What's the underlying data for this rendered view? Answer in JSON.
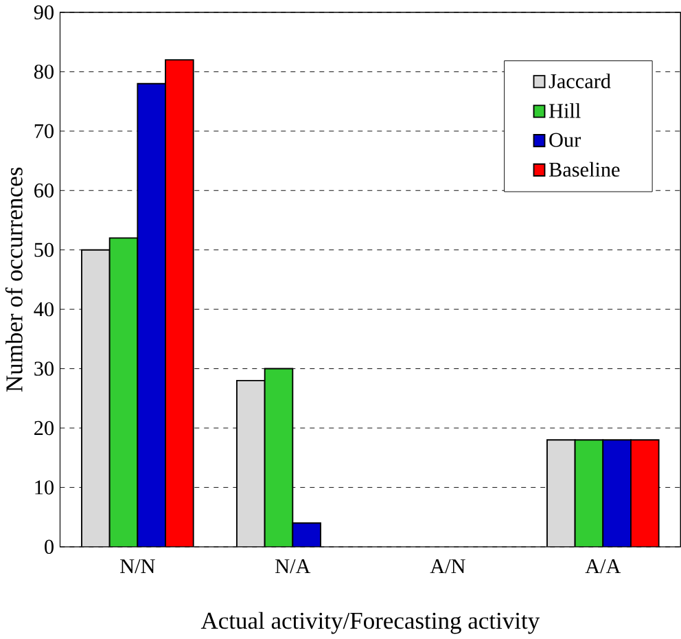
{
  "chart_data": {
    "type": "bar",
    "xlabel": "Actual activity/Forecasting activity",
    "ylabel": "Number of occurrences",
    "categories": [
      "N/N",
      "N/A",
      "A/N",
      "A/A"
    ],
    "series": [
      {
        "name": "Jaccard",
        "color": "#d9d9d9",
        "values": [
          50,
          28,
          0,
          18
        ]
      },
      {
        "name": "Hill",
        "color": "#33cc33",
        "values": [
          52,
          30,
          0,
          18
        ]
      },
      {
        "name": "Our",
        "color": "#0000cc",
        "values": [
          78,
          4,
          0,
          18
        ]
      },
      {
        "name": "Baseline",
        "color": "#ff0000",
        "values": [
          82,
          0,
          0,
          18
        ]
      }
    ],
    "ylim": [
      0,
      90
    ],
    "yticks": [
      0,
      10,
      20,
      30,
      40,
      50,
      60,
      70,
      80,
      90
    ],
    "grid": "y",
    "legend": "top right"
  }
}
